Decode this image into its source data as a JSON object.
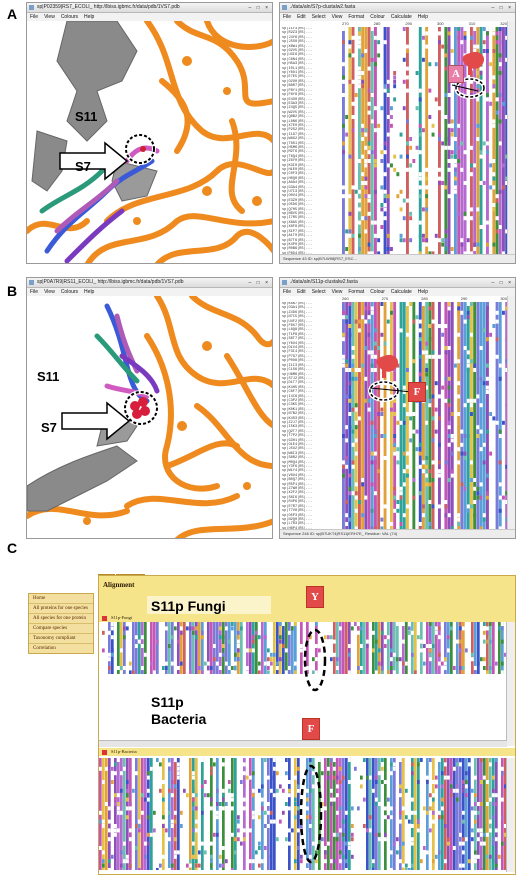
{
  "panels": [
    "A",
    "B",
    "C"
  ],
  "panel_a": {
    "left_window_title": "sp|P02359|RS7_ECOLI_ http://lbiss.igbmc.fr/data/pdb/1VS7.pdb",
    "left_menu": [
      "File",
      "View",
      "Colours",
      "Help"
    ],
    "right_window_title": "./data/aln/S7p-clustalw2.fasta",
    "right_menu": [
      "File",
      "Edit",
      "Select",
      "View",
      "Format",
      "Colour",
      "Calculate",
      "Help"
    ],
    "ruler": [
      "270",
      "280",
      "290",
      "300",
      "310",
      "320"
    ],
    "status": "Sequence 43 ID: sp|B7LW98|RS7_ESC...",
    "label_s11": "S11",
    "label_s7": "S7",
    "callout": "A"
  },
  "panel_b": {
    "left_window_title": "sp|P0A7R9|RS11_ECOLI_ http://lbiss.igbmc.fr/data/pdb/1VS7.pdb",
    "left_menu": [
      "File",
      "View",
      "Colours",
      "Help"
    ],
    "right_window_title": "./data/aln/S11p-clustalw2.fasta",
    "right_menu": [
      "File",
      "Edit",
      "Select",
      "View",
      "Format",
      "Colour",
      "Calculate",
      "Help"
    ],
    "ruler": [
      "260",
      "270",
      "280",
      "290",
      "300"
    ],
    "status": "Sequence 246 ID: sp|B7UKT4|RS11|ERH7E_  Residue: VAL (74)",
    "label_s11": "S11",
    "label_s7": "S7",
    "callout": "F"
  },
  "panel_c": {
    "tabs": [
      "Tree",
      "Alignment"
    ],
    "heading": "Alignment",
    "nav": [
      "Home",
      "All proteins for one species",
      "All species for one protein",
      "Compare species",
      "Taxonomy compliant",
      "Correlation"
    ],
    "section_fungi": "S11p-Fungi",
    "section_bacteria": "S11p-Bacteria",
    "label_fungi": "S11p Fungi",
    "label_bacteria_1": "S11p",
    "label_bacteria_2": "Bacteria",
    "callout_y": "Y",
    "callout_f": "F"
  },
  "colors": {
    "rna_orange": "#ee8a1e",
    "protein_gray": "#8a8a8a",
    "callout_red": "#e24a4a",
    "nav_bg": "#f3dfa0",
    "header_yellow": "#f6e48a"
  }
}
